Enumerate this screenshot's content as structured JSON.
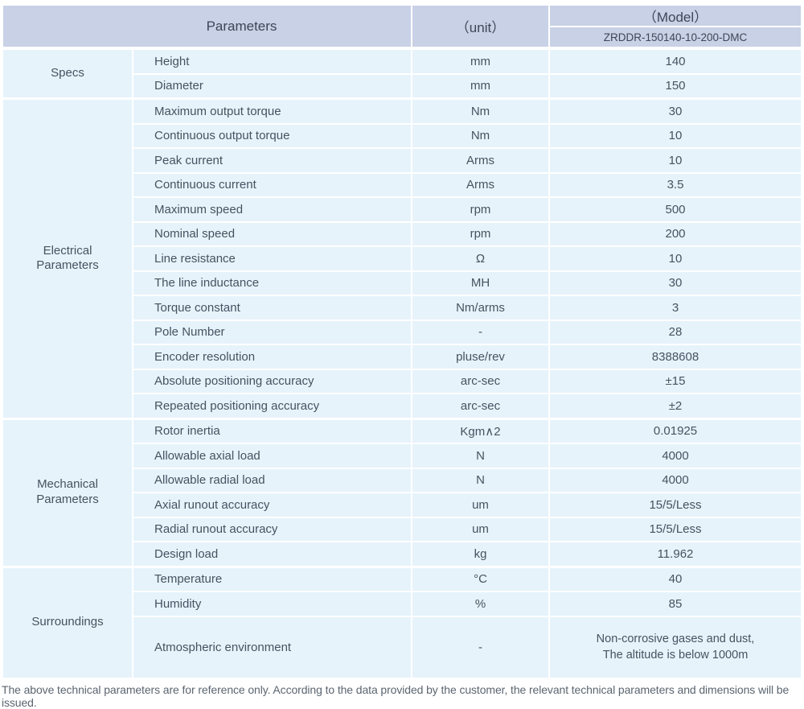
{
  "header": {
    "parameters_label": "Parameters",
    "unit_label": "（unit）",
    "model_label": "（Model）",
    "model_value": "ZRDDR-150140-10-200-DMC"
  },
  "groups": [
    {
      "category": "Specs",
      "rows": [
        {
          "label": "Height",
          "unit": "mm",
          "value": "140"
        },
        {
          "label": "Diameter",
          "unit": "mm",
          "value": "150"
        }
      ]
    },
    {
      "category": "Electrical\nParameters",
      "rows": [
        {
          "label": "Maximum output torque",
          "unit": "Nm",
          "value": "30"
        },
        {
          "label": "Continuous output torque",
          "unit": "Nm",
          "value": "10"
        },
        {
          "label": "Peak current",
          "unit": "Arms",
          "value": "10"
        },
        {
          "label": "Continuous current",
          "unit": "Arms",
          "value": "3.5"
        },
        {
          "label": "Maximum speed",
          "unit": "rpm",
          "value": "500"
        },
        {
          "label": "Nominal speed",
          "unit": "rpm",
          "value": "200"
        },
        {
          "label": "Line resistance",
          "unit": "Ω",
          "value": "10"
        },
        {
          "label": "The line inductance",
          "unit": "MH",
          "value": "30"
        },
        {
          "label": "Torque constant",
          "unit": "Nm/arms",
          "value": "3"
        },
        {
          "label": "Pole Number",
          "unit": "-",
          "value": "28"
        },
        {
          "label": "Encoder resolution",
          "unit": "pluse/rev",
          "value": "8388608"
        },
        {
          "label": "Absolute positioning accuracy",
          "unit": "arc-sec",
          "value": "±15"
        },
        {
          "label": "Repeated positioning accuracy",
          "unit": "arc-sec",
          "value": "±2"
        }
      ]
    },
    {
      "category": "Mechanical\nParameters",
      "rows": [
        {
          "label": "Rotor inertia",
          "unit": "Kgm∧2",
          "value": "0.01925"
        },
        {
          "label": "Allowable axial load",
          "unit": "N",
          "value": "4000"
        },
        {
          "label": "Allowable radial load",
          "unit": "N",
          "value": "4000"
        },
        {
          "label": "Axial runout accuracy",
          "unit": "um",
          "value": "15/5/Less"
        },
        {
          "label": "Radial runout accuracy",
          "unit": "um",
          "value": "15/5/Less"
        },
        {
          "label": "Design load",
          "unit": "kg",
          "value": "11.962"
        }
      ]
    },
    {
      "category": "Surroundings",
      "rows": [
        {
          "label": "Temperature",
          "unit": "°C",
          "value": "40"
        },
        {
          "label": "Humidity",
          "unit": "%",
          "value": "85"
        },
        {
          "label": "Atmospheric environment",
          "unit": "-",
          "value": "Non-corrosive gases and dust,\nThe altitude is below 1000m",
          "tall": true
        }
      ]
    }
  ],
  "footer": {
    "note": "The above technical parameters are for reference only. According to the data provided by the customer, the relevant technical parameters and dimensions will be issued."
  },
  "colors": {
    "header_bg": "#c8d1e6",
    "cell_bg": "#e6f3fb",
    "text": "#475260",
    "footer_text": "#5b6570"
  }
}
